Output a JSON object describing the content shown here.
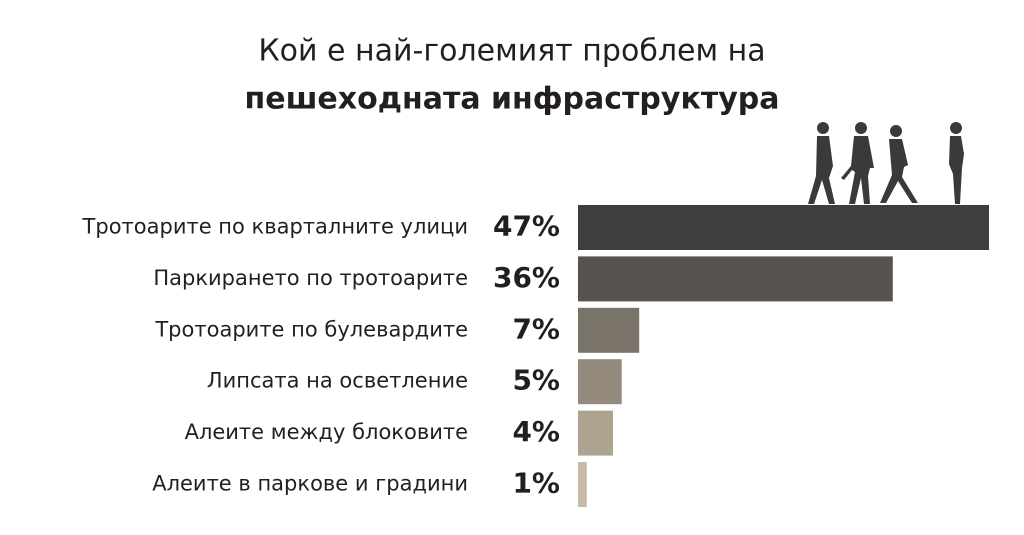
{
  "chart_data": {
    "type": "bar",
    "title": [
      "Кой е най-големият проблем на",
      "пешеходната инфраструктура"
    ],
    "categories": [
      "Тротоарите по кварталните улици",
      "Паркирането по тротоарите",
      "Тротоарите по булевардите",
      "Липсата на осветление",
      "Алеите между блоковите",
      "Алеите в паркове и градини"
    ],
    "values": [
      47,
      36,
      7,
      5,
      4,
      1
    ],
    "value_labels": [
      "47%",
      "36%",
      "7%",
      "5%",
      "4%",
      "1%"
    ],
    "colors": [
      "#3e3e40",
      "#58534f",
      "#7a736a",
      "#958b7c",
      "#ada38f",
      "#c6bca6"
    ]
  }
}
